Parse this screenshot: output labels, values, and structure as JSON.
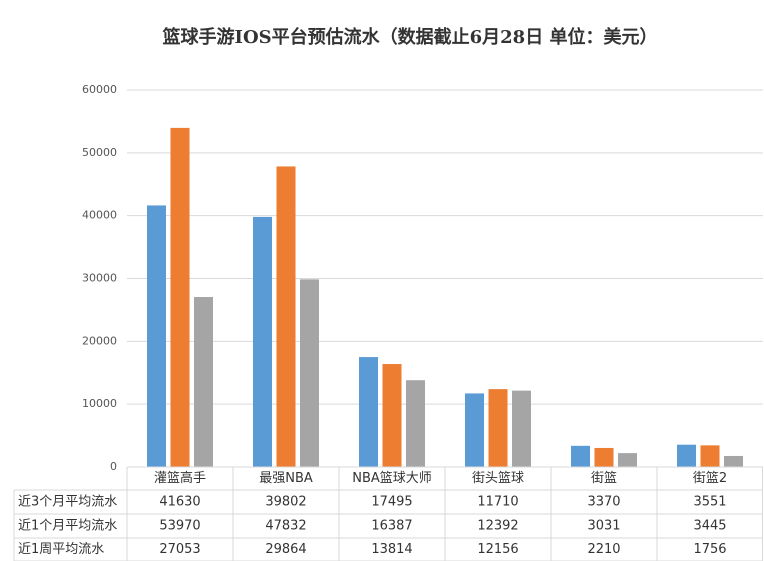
{
  "chart_data": {
    "type": "bar",
    "title": "篮球手游IOS平台预估流水（数据截止6月28日 单位：美元）",
    "categories": [
      "灌篮高手",
      "最强NBA",
      "NBA篮球大师",
      "街头篮球",
      "街篮",
      "街篮2"
    ],
    "series": [
      {
        "name": "近3个月平均流水",
        "color": "#5b9bd5",
        "values": [
          41630,
          39802,
          17495,
          11710,
          3370,
          3551
        ]
      },
      {
        "name": "近1个月平均流水",
        "color": "#ed7d31",
        "values": [
          53970,
          47832,
          16387,
          12392,
          3031,
          3445
        ]
      },
      {
        "name": "近1周平均流水",
        "color": "#a5a5a5",
        "values": [
          27053,
          29864,
          13814,
          12156,
          2210,
          1756
        ]
      }
    ],
    "ylim": [
      0,
      60000
    ],
    "yticks": [
      0,
      10000,
      20000,
      30000,
      40000,
      50000,
      60000
    ],
    "grid": true
  }
}
